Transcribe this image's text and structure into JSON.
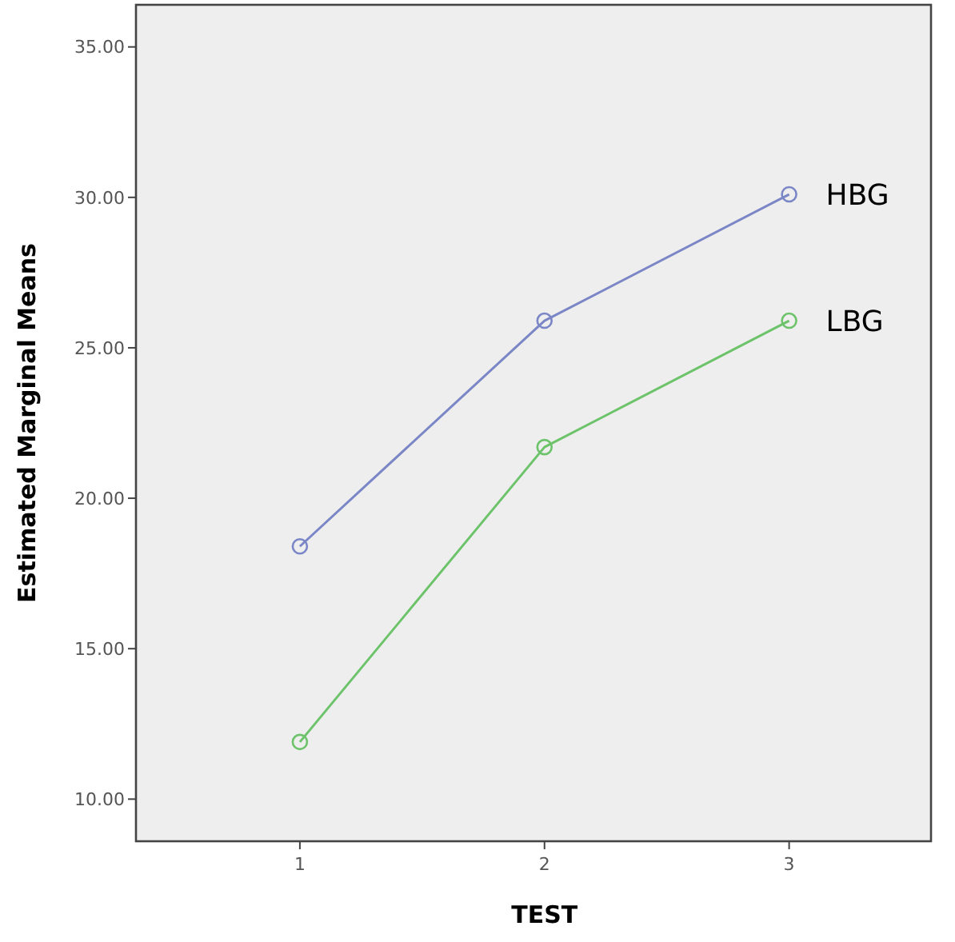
{
  "chart_data": {
    "type": "line",
    "xlabel": "TEST",
    "ylabel": "Estimated Marginal Means",
    "categories": [
      "1",
      "2",
      "3"
    ],
    "series": [
      {
        "name": "HBG",
        "color": "#7b86c6",
        "values": [
          18.4,
          25.9,
          30.1
        ]
      },
      {
        "name": "LBG",
        "color": "#6cc36a",
        "values": [
          11.9,
          21.7,
          25.9
        ]
      }
    ],
    "ylim": [
      8.6,
      36.4
    ],
    "yticks": [
      {
        "value": 10,
        "label": "10.00"
      },
      {
        "value": 15,
        "label": "15.00"
      },
      {
        "value": 20,
        "label": "20.00"
      },
      {
        "value": 25,
        "label": "25.00"
      },
      {
        "value": 30,
        "label": "30.00"
      },
      {
        "value": 35,
        "label": "35.00"
      }
    ],
    "marker": "circle",
    "line_style": "solid",
    "grid": false
  }
}
